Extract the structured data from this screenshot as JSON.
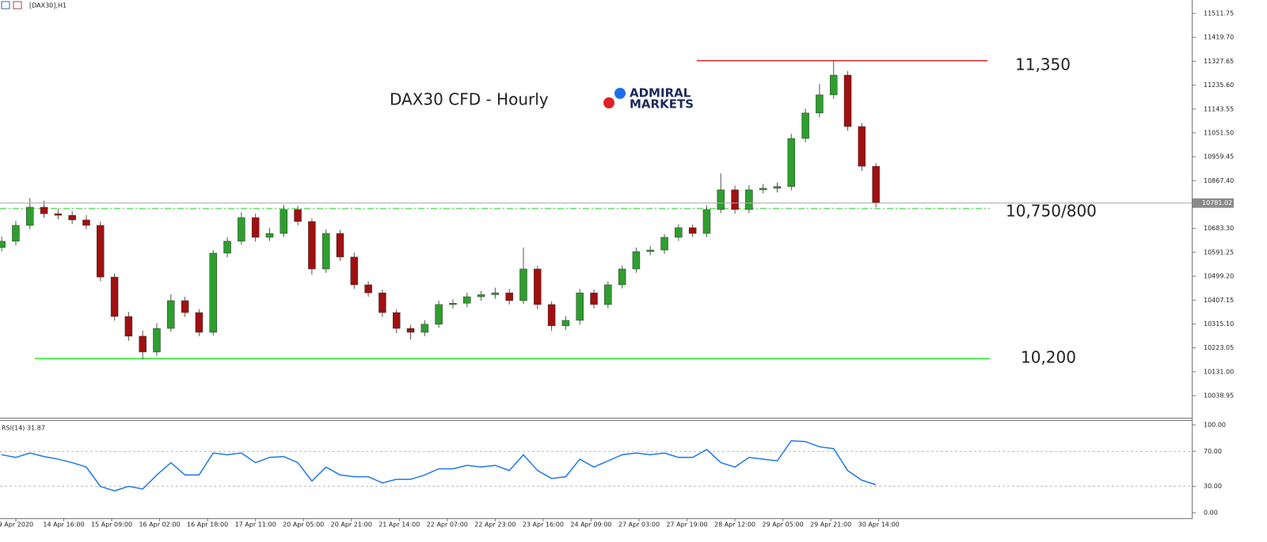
{
  "chart_data": [
    {
      "type": "candlestick",
      "symbol_label": "[DAX30],H1",
      "title": "DAX30 CFD - Hourly",
      "logo": [
        "ADMIRAL",
        "MARKETS"
      ],
      "annotations": [
        "11,350",
        "10,750/800",
        "10,200"
      ],
      "levels": [
        {
          "value": 11330,
          "color": "#e02020"
        },
        {
          "value": 10760,
          "color": "#66dd66"
        },
        {
          "value": 10182,
          "color": "#22ee22"
        }
      ],
      "up_color": "#2e9e2e",
      "down_color": "#a01010",
      "x": [
        -5,
        0,
        5,
        10,
        15,
        20,
        25,
        30,
        35,
        40,
        45,
        50,
        55,
        60,
        65,
        70,
        75,
        80,
        85,
        90,
        95,
        100,
        105,
        110,
        115,
        120,
        125,
        130,
        135,
        140,
        145,
        150,
        155,
        160,
        165,
        170,
        175,
        180,
        185,
        190,
        195,
        200,
        205,
        210,
        215,
        220,
        225,
        230,
        235,
        240,
        245,
        250,
        255,
        260,
        265,
        270,
        275,
        280,
        285,
        290,
        295,
        300,
        305
      ],
      "open": [
        10610,
        10634,
        10695,
        10765,
        10740,
        10734,
        10716,
        10695,
        10496,
        10344,
        10268,
        10207,
        10298,
        10405,
        10359,
        10283,
        10588,
        10634,
        10725,
        10649,
        10664,
        10756,
        10710,
        10527,
        10664,
        10573,
        10466,
        10435,
        10359,
        10298,
        10283,
        10314,
        10390,
        10395,
        10420,
        10428,
        10435,
        10405,
        10527,
        10390,
        10308,
        10329,
        10435,
        10390,
        10466,
        10527,
        10594,
        10600,
        10649,
        10686,
        10664,
        10756,
        10832,
        10756,
        10832,
        10838,
        10845,
        11030,
        11128,
        11198,
        11274,
        11076,
        10923
      ],
      "high": [
        10652,
        10712,
        10800,
        10790,
        10760,
        10750,
        10735,
        10710,
        10510,
        10362,
        10290,
        10318,
        10430,
        10420,
        10372,
        10600,
        10650,
        10745,
        10740,
        10685,
        10775,
        10770,
        10722,
        10680,
        10678,
        10590,
        10480,
        10448,
        10372,
        10312,
        10330,
        10405,
        10410,
        10435,
        10442,
        10455,
        10450,
        10610,
        10540,
        10402,
        10345,
        10450,
        10448,
        10480,
        10540,
        10610,
        10615,
        10662,
        10700,
        10698,
        10772,
        10895,
        10848,
        10850,
        10855,
        10860,
        11048,
        11145,
        11240,
        11330,
        11290,
        11090,
        10935
      ],
      "low": [
        10594,
        10618,
        10680,
        10725,
        10718,
        10700,
        10680,
        10480,
        10328,
        10250,
        10178,
        10192,
        10285,
        10342,
        10268,
        10270,
        10572,
        10620,
        10632,
        10635,
        10650,
        10695,
        10505,
        10512,
        10558,
        10450,
        10420,
        10342,
        10280,
        10255,
        10268,
        10300,
        10375,
        10380,
        10405,
        10412,
        10390,
        10392,
        10372,
        10288,
        10292,
        10312,
        10375,
        10376,
        10452,
        10512,
        10580,
        10585,
        10635,
        10650,
        10650,
        10742,
        10740,
        10742,
        10818,
        10822,
        10830,
        11015,
        11112,
        11182,
        11060,
        10905,
        10765
      ],
      "close": [
        10634,
        10695,
        10765,
        10740,
        10734,
        10716,
        10695,
        10496,
        10344,
        10268,
        10207,
        10298,
        10405,
        10359,
        10283,
        10588,
        10634,
        10725,
        10649,
        10664,
        10756,
        10710,
        10527,
        10664,
        10573,
        10466,
        10435,
        10359,
        10298,
        10283,
        10314,
        10390,
        10395,
        10420,
        10428,
        10435,
        10405,
        10527,
        10390,
        10308,
        10329,
        10435,
        10390,
        10466,
        10527,
        10594,
        10600,
        10649,
        10686,
        10664,
        10756,
        10832,
        10756,
        10832,
        10838,
        10845,
        11030,
        11128,
        11198,
        11274,
        11076,
        10923,
        10781.02
      ],
      "xlim": [
        -5.6,
        417
      ],
      "ylim": [
        9953.6,
        11563.6
      ],
      "yticks": [
        11511.75,
        {
          "value": 11419.7,
          "label": "11419.70"
        },
        11327.65,
        {
          "value": 11235.6,
          "label": "11235.60"
        },
        11143.55,
        {
          "value": 11051.5,
          "label": "11051.50"
        },
        10959.45,
        {
          "value": 10867.4,
          "label": "10867.40"
        },
        {
          "value": 10683.3,
          "label": "10683.30"
        },
        10591.25,
        {
          "value": 10499.2,
          "label": "10499.20"
        },
        10407.15,
        {
          "value": 10315.1,
          "label": "10315.10"
        },
        10223.05,
        {
          "value": 10131,
          "label": "10131.00"
        },
        10038.95
      ]
    },
    {
      "type": "line",
      "name": "RSI(14)",
      "color": "#1e78e6",
      "values": [
        66,
        63,
        68,
        64,
        61,
        57,
        52,
        30,
        25,
        30,
        27,
        43,
        57,
        43,
        43,
        68,
        66,
        68,
        57,
        63,
        64,
        57,
        36,
        52,
        43,
        41,
        41,
        34,
        38,
        38,
        43,
        50,
        50,
        54,
        52,
        54,
        48,
        66,
        48,
        39,
        41,
        61,
        52,
        59,
        66,
        68,
        66,
        68,
        63,
        63,
        72,
        57,
        52,
        63,
        61,
        59,
        82,
        81,
        75,
        73,
        48,
        37,
        31.87
      ],
      "ylim": [
        -6.3,
        104.5
      ],
      "yticks": [
        {
          "value": 100,
          "label": "100.00"
        },
        {
          "value": 70,
          "label": "70.00"
        },
        {
          "value": 30,
          "label": "30.00"
        },
        {
          "value": 0,
          "label": "0.00"
        }
      ],
      "xticks": [
        {
          "value": 0,
          "label": "9 Apr 2020"
        },
        {
          "value": 17,
          "label": "14 Apr 16:00"
        },
        {
          "value": 34,
          "label": "15 Apr 09:00"
        },
        {
          "value": 51,
          "label": "16 Apr 02:00"
        },
        {
          "value": 68,
          "label": "16 Apr 18:00"
        },
        {
          "value": 85,
          "label": "17 Apr 11:00"
        },
        {
          "value": 102,
          "label": "20 Apr 05:00"
        },
        {
          "value": 119,
          "label": "20 Apr 21:00"
        },
        {
          "value": 136,
          "label": "21 Apr 14:00"
        },
        {
          "value": 153,
          "label": "22 Apr 07:00"
        },
        {
          "value": 170,
          "label": "22 Apr 23:00"
        },
        {
          "value": 187,
          "label": "23 Apr 16:00"
        },
        {
          "value": 204,
          "label": "24 Apr 09:00"
        },
        {
          "value": 221,
          "label": "27 Apr 03:00"
        },
        {
          "value": 238,
          "label": "27 Apr 19:00"
        },
        {
          "value": 255,
          "label": "28 Apr 12:00"
        },
        {
          "value": 272,
          "label": "29 Apr 05:00"
        },
        {
          "value": 289,
          "label": "29 Apr 21:00"
        },
        {
          "value": 306,
          "label": "30 Apr 14:00"
        }
      ]
    }
  ]
}
